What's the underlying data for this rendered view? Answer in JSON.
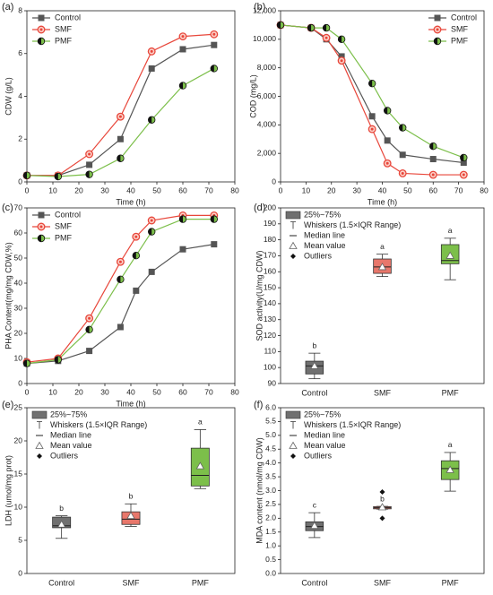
{
  "chart_data": [
    {
      "type": "line",
      "panel_label": "(a)",
      "x_label": "Time (h)",
      "y_label": "CDW (g/L)",
      "x": [
        0,
        12,
        24,
        36,
        48,
        60,
        72
      ],
      "xlim": [
        0,
        80
      ],
      "xticks": [
        0,
        10,
        20,
        30,
        40,
        50,
        60,
        70,
        80
      ],
      "ylim": [
        0,
        8
      ],
      "yticks": [
        0,
        2,
        4,
        6,
        8
      ],
      "legend": "upper left",
      "series": [
        {
          "name": "Control",
          "color": "#555555",
          "marker": "square",
          "values": [
            0.3,
            0.3,
            0.8,
            2.0,
            5.3,
            6.2,
            6.4
          ]
        },
        {
          "name": "SMF",
          "color": "#e8463a",
          "marker": "circle",
          "values": [
            0.3,
            0.3,
            1.3,
            3.05,
            6.1,
            6.8,
            6.9
          ]
        },
        {
          "name": "PMF",
          "color": "#7cbf4a",
          "marker": "half",
          "values": [
            0.3,
            0.25,
            0.35,
            1.1,
            2.9,
            4.5,
            5.3
          ]
        }
      ]
    },
    {
      "type": "line",
      "panel_label": "(b)",
      "x_label": "Time (h)",
      "y_label": "COD (mg/L)",
      "x": [
        0,
        12,
        18,
        24,
        36,
        42,
        48,
        60,
        72
      ],
      "xlim": [
        0,
        80
      ],
      "xticks": [
        0,
        10,
        20,
        30,
        40,
        50,
        60,
        70,
        80
      ],
      "ylim": [
        0,
        12000
      ],
      "yticks": [
        0,
        {
          "value": 2000,
          "label": "2,000"
        },
        {
          "value": 4000,
          "label": "4,000"
        },
        {
          "value": 6000,
          "label": "6,000"
        },
        {
          "value": 8000,
          "label": "8,000"
        },
        {
          "value": 10000,
          "label": "10,000"
        },
        {
          "value": 12000,
          "label": "12,000"
        }
      ],
      "legend": "upper right",
      "series": [
        {
          "name": "Control",
          "color": "#555555",
          "marker": "square",
          "values": [
            11000,
            10800,
            10000,
            8800,
            4600,
            2900,
            1900,
            1600,
            1350
          ]
        },
        {
          "name": "SMF",
          "color": "#e8463a",
          "marker": "circle",
          "values": [
            11000,
            10800,
            10100,
            8500,
            3700,
            1300,
            600,
            500,
            500
          ]
        },
        {
          "name": "PMF",
          "color": "#7cbf4a",
          "marker": "half",
          "values": [
            11000,
            10800,
            10800,
            10000,
            6900,
            5000,
            3800,
            2500,
            1700
          ]
        }
      ]
    },
    {
      "type": "line",
      "panel_label": "(c)",
      "x_label": "Time (h)",
      "y_label": "PHA Content(mg/mg CDW,%)",
      "x": [
        0,
        12,
        24,
        36,
        42,
        48,
        60,
        72
      ],
      "xlim": [
        0,
        80
      ],
      "xticks": [
        0,
        10,
        20,
        30,
        40,
        50,
        60,
        70,
        80
      ],
      "ylim": [
        0,
        70
      ],
      "yticks": [
        0,
        10,
        20,
        30,
        40,
        50,
        60,
        70
      ],
      "legend": "upper left",
      "series": [
        {
          "name": "Control",
          "color": "#555555",
          "marker": "square",
          "values": [
            8,
            9,
            13,
            22.5,
            37,
            44.5,
            53.5,
            55.5
          ]
        },
        {
          "name": "SMF",
          "color": "#e8463a",
          "marker": "circle",
          "values": [
            8.5,
            10,
            26,
            48.5,
            58.5,
            65,
            67,
            67
          ]
        },
        {
          "name": "PMF",
          "color": "#7cbf4a",
          "marker": "half",
          "values": [
            8,
            9.5,
            21.5,
            41.5,
            51,
            60.5,
            65.5,
            65.5
          ]
        }
      ]
    },
    {
      "type": "box",
      "panel_label": "(d)",
      "y_label": "SOD activity(U/mg CDW)",
      "categories": [
        "Control",
        "SMF",
        "PMF"
      ],
      "colors": [
        "#707070",
        "#e8776b",
        "#7cbf4a"
      ],
      "ylim": [
        90,
        200
      ],
      "yticks": [
        90,
        100,
        110,
        120,
        130,
        140,
        150,
        160,
        170,
        180,
        190,
        200
      ],
      "legend": [
        "25%~75%",
        "Whiskers (1.5×IQR Range)",
        "Median line",
        "Mean value",
        "Outliers"
      ],
      "boxes": [
        {
          "whisker_low": 93,
          "q1": 96,
          "median": 101,
          "q3": 104,
          "whisker_high": 109,
          "mean": 101,
          "letter": "b"
        },
        {
          "whisker_low": 157,
          "q1": 159,
          "median": 163,
          "q3": 168,
          "whisker_high": 171,
          "mean": 163,
          "letter": "a"
        },
        {
          "whisker_low": 155,
          "q1": 165,
          "median": 167,
          "q3": 177,
          "whisker_high": 181,
          "mean": 170,
          "letter": "a"
        }
      ]
    },
    {
      "type": "box",
      "panel_label": "(e)",
      "y_label": "LDH (umol/mg prot)",
      "categories": [
        "Control",
        "SMF",
        "PMF"
      ],
      "colors": [
        "#707070",
        "#e8776b",
        "#7cbf4a"
      ],
      "ylim": [
        0,
        25
      ],
      "yticks": [
        0,
        5,
        10,
        15,
        20,
        25
      ],
      "legend": [
        "25%~75%",
        "Whiskers (1.5×IQR Range)",
        "Median line",
        "Mean value",
        "Outliers"
      ],
      "boxes": [
        {
          "whisker_low": 5.3,
          "q1": 6.9,
          "median": 7.2,
          "q3": 8.5,
          "whisker_high": 8.7,
          "mean": 7.4,
          "letter": "b"
        },
        {
          "whisker_low": 7.1,
          "q1": 7.4,
          "median": 8.2,
          "q3": 9.3,
          "whisker_high": 10.5,
          "mean": 8.7,
          "letter": "b"
        },
        {
          "whisker_low": 12.8,
          "q1": 13.2,
          "median": 14.8,
          "q3": 18.9,
          "whisker_high": 21.7,
          "mean": 16.2,
          "letter": "a"
        }
      ]
    },
    {
      "type": "box",
      "panel_label": "(f)",
      "y_label": "MDA content (nmol/mg CDW)",
      "categories": [
        "Control",
        "SMF",
        "PMF"
      ],
      "colors": [
        "#707070",
        "#e8776b",
        "#7cbf4a"
      ],
      "ylim": [
        0,
        6
      ],
      "yticks": [
        {
          "value": 0,
          "label": "0.0"
        },
        0.5,
        {
          "value": 1,
          "label": "1.0"
        },
        1.5,
        {
          "value": 2,
          "label": "2.0"
        },
        2.5,
        {
          "value": 3,
          "label": "3.0"
        },
        3.5,
        {
          "value": 4,
          "label": "4.0"
        },
        4.5,
        {
          "value": 5,
          "label": "5.0"
        },
        5.5,
        {
          "value": 6,
          "label": "6.0"
        }
      ],
      "legend": [
        "25%~75%",
        "Whiskers (1.5×IQR Range)",
        "Median line",
        "Mean value",
        "Outliers"
      ],
      "boxes": [
        {
          "whisker_low": 1.3,
          "q1": 1.55,
          "median": 1.7,
          "q3": 1.87,
          "whisker_high": 2.2,
          "mean": 1.73,
          "letter": "c"
        },
        {
          "whisker_low": 2.33,
          "q1": 2.34,
          "median": 2.38,
          "q3": 2.42,
          "whisker_high": 2.43,
          "mean": 2.4,
          "outliers": [
            2.95,
            2.0
          ],
          "letter": "b"
        },
        {
          "whisker_low": 2.98,
          "q1": 3.4,
          "median": 3.8,
          "q3": 4.08,
          "whisker_high": 4.38,
          "mean": 3.75,
          "letter": "a"
        }
      ]
    }
  ]
}
